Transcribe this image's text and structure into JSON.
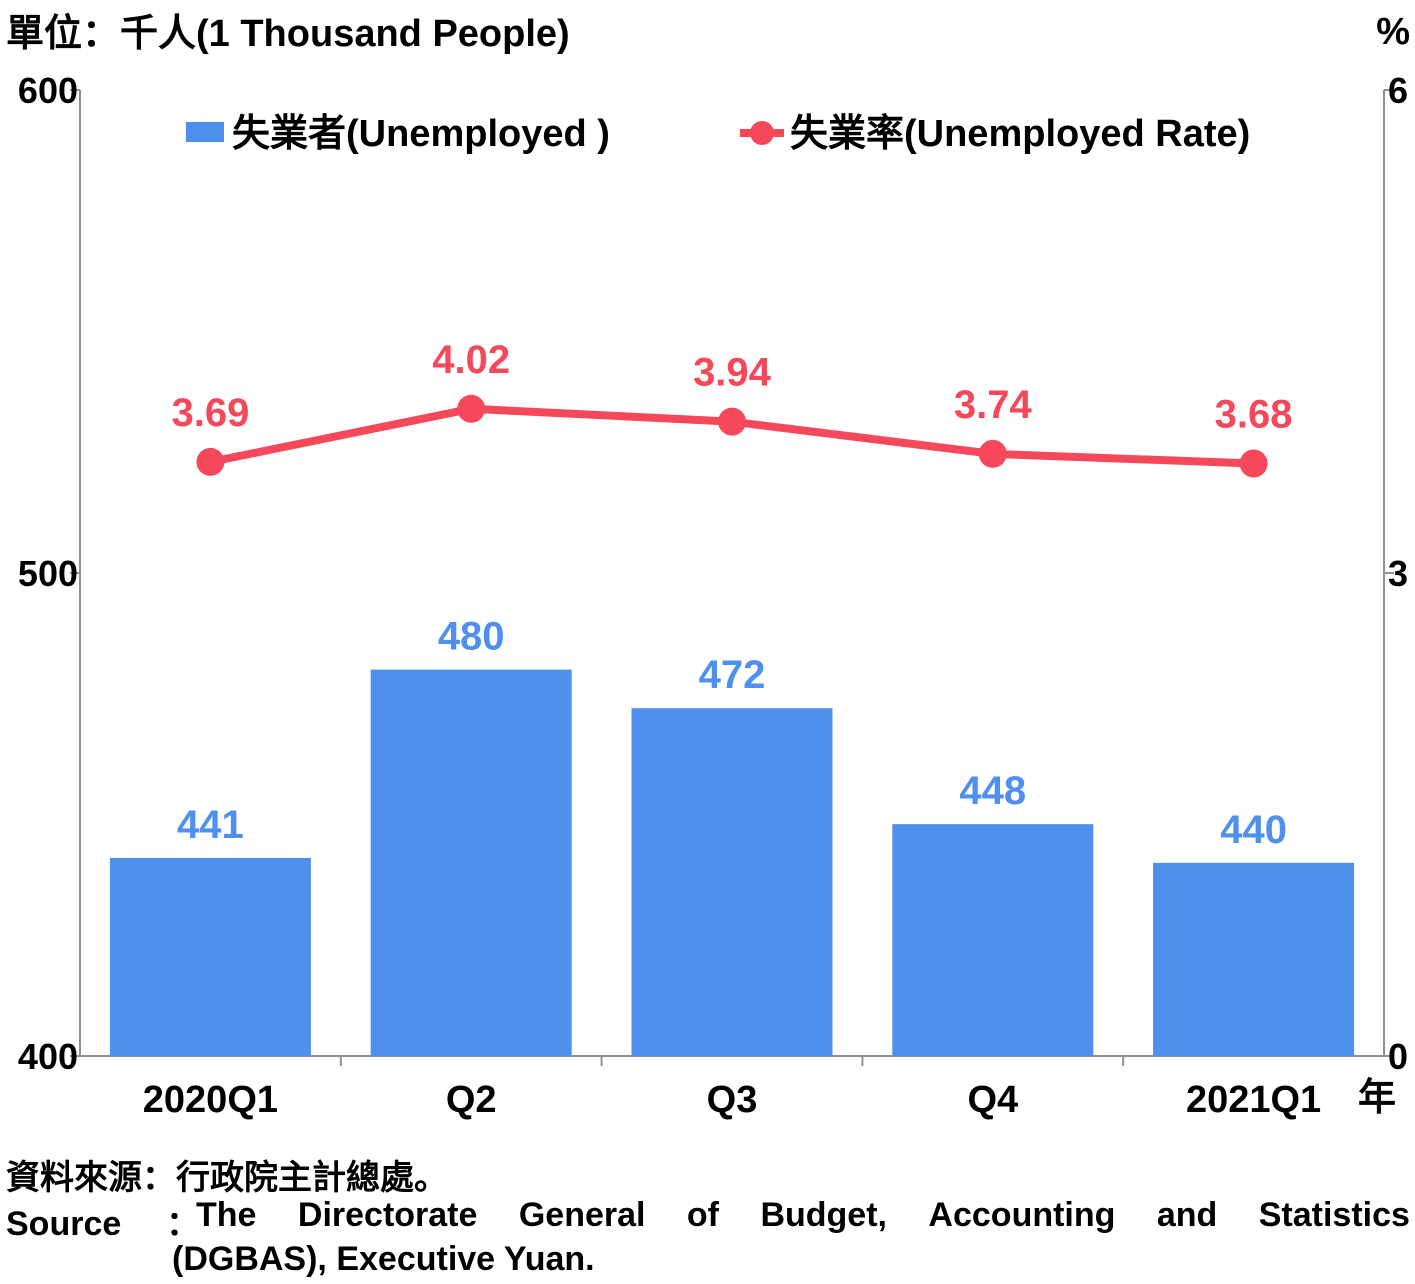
{
  "chart_data": {
    "type": "bar+line",
    "title": "",
    "left_axis_title": "單位：千人(1 Thousand People)",
    "right_axis_title": "%",
    "x_unit": "年",
    "categories": [
      "2020Q1",
      "Q2",
      "Q3",
      "Q4",
      "2021Q1"
    ],
    "left_ticks": [
      "600",
      "500",
      "400"
    ],
    "right_ticks": [
      "6",
      "3",
      "0"
    ],
    "ylim_left": [
      400,
      600
    ],
    "ylim_right": [
      0,
      6
    ],
    "series": [
      {
        "name": "失業者(Unemployed )",
        "type": "bar",
        "axis": "left",
        "values": [
          441,
          480,
          472,
          448,
          440
        ],
        "color": "#4f8fee"
      },
      {
        "name": "失業率(Unemployed Rate)",
        "type": "line",
        "axis": "right",
        "values": [
          3.69,
          4.02,
          3.94,
          3.74,
          3.68
        ],
        "color": "#f5485a"
      }
    ],
    "legend": "top"
  },
  "source": {
    "zh": "資料來源：行政院主計總處。",
    "en_label": "Source",
    "en_sep": "：",
    "en_line1_words": [
      "The",
      "Directorate",
      "General",
      "of",
      "Budget,",
      "Accounting",
      "and",
      "Statistics"
    ],
    "en_line2": "(DGBAS), Executive Yuan."
  }
}
